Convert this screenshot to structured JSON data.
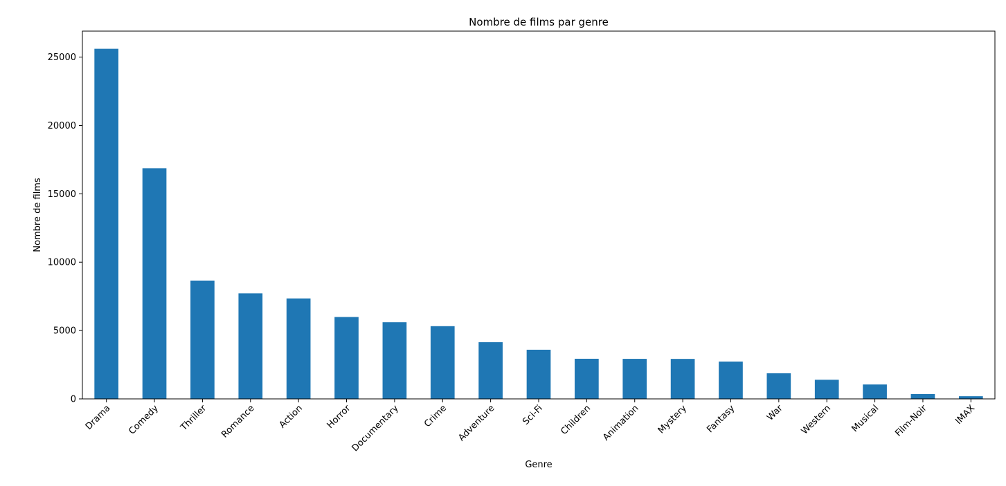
{
  "chart_data": {
    "type": "bar",
    "title": "Nombre de films par genre",
    "xlabel": "Genre",
    "ylabel": "Nombre de films",
    "categories": [
      "Drama",
      "Comedy",
      "Thriller",
      "Romance",
      "Action",
      "Horror",
      "Documentary",
      "Crime",
      "Adventure",
      "Sci-Fi",
      "Children",
      "Animation",
      "Mystery",
      "Fantasy",
      "War",
      "Western",
      "Musical",
      "Film-Noir",
      "IMAX"
    ],
    "values": [
      25606,
      16870,
      8654,
      7719,
      7348,
      5989,
      5605,
      5319,
      4145,
      3595,
      2935,
      2929,
      2925,
      2731,
      1874,
      1399,
      1054,
      353,
      195
    ],
    "ylim": [
      0,
      26900
    ],
    "yticks": [
      0,
      5000,
      10000,
      15000,
      20000,
      25000
    ],
    "grid": false,
    "legend": "none",
    "bar_color": "#1f77b4"
  }
}
